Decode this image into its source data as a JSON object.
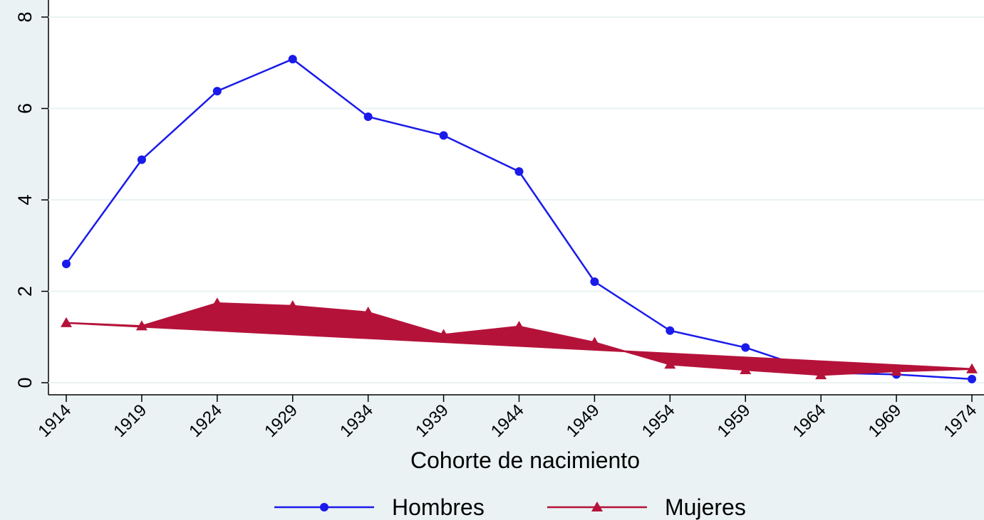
{
  "chart_data": {
    "type": "line",
    "xlabel": "Cohorte de nacimiento",
    "x": [
      1914,
      1919,
      1924,
      1929,
      1934,
      1939,
      1944,
      1949,
      1954,
      1959,
      1964,
      1969,
      1974
    ],
    "series": [
      {
        "name": "Hombres",
        "color": "#1a1aeb",
        "marker": "circle",
        "values": [
          2.6,
          4.88,
          6.38,
          7.08,
          5.82,
          5.41,
          4.62,
          2.21,
          1.14,
          0.77,
          0.22,
          0.18,
          0.08
        ]
      },
      {
        "name": "Mujeres",
        "color": "#b5123a",
        "marker": "triangle",
        "values": [
          1.31,
          1.24,
          1.74,
          1.68,
          1.54,
          1.05,
          1.23,
          0.88,
          0.4,
          0.28,
          0.17,
          0.25,
          0.3
        ]
      }
    ],
    "xlim": [
      1914,
      1974
    ],
    "xticks": [
      1914,
      1919,
      1924,
      1929,
      1934,
      1939,
      1944,
      1949,
      1954,
      1959,
      1964,
      1969,
      1974
    ],
    "ylim": [
      0,
      8
    ],
    "yticks": [
      0,
      2,
      4,
      6,
      8
    ],
    "grid": true,
    "legend": "bottom"
  }
}
